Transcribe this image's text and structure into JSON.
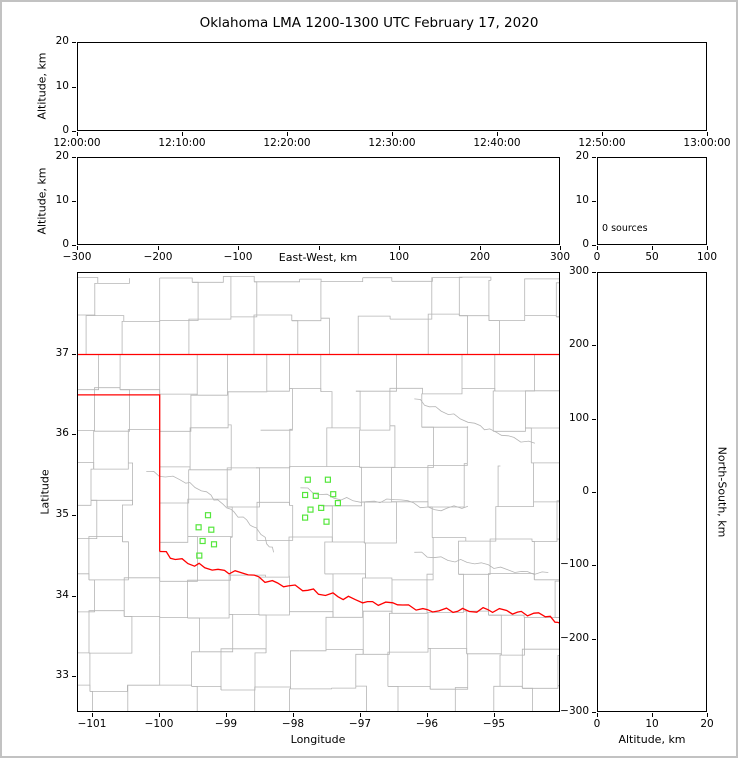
{
  "title": "Oklahoma LMA 1200-1300 UTC February 17, 2020",
  "colors": {
    "state_border": "#ff0000",
    "county_lines": "#b5b5b5",
    "rivers": "#b5b5b5",
    "station_marker": "#55e63c",
    "axes": "#000000",
    "background": "#ffffff",
    "figure_frame": "#c2c2c2"
  },
  "chart_data": {
    "type": "scatter",
    "title": "Oklahoma LMA 1200-1300 UTC February 17, 2020",
    "panels": {
      "time_height": {
        "role": "altitude vs time",
        "ylabel": "Altitude, km",
        "ylim": [
          0,
          20
        ],
        "yticks": [
          0,
          10,
          20
        ],
        "xtick_labels": [
          "12:00:00",
          "12:10:00",
          "12:20:00",
          "12:30:00",
          "12:40:00",
          "12:50:00",
          "13:00:00"
        ],
        "points": []
      },
      "east_west_height": {
        "role": "altitude vs east-west distance",
        "xlabel": "East-West, km",
        "ylabel": "Altitude, km",
        "xlim": [
          -300,
          300
        ],
        "xticks": [
          -300,
          -200,
          -100,
          0,
          100,
          200,
          300
        ],
        "xtick_labels": [
          "−300",
          "−200",
          "−100",
          "",
          "100",
          "200",
          "300"
        ],
        "ylim": [
          0,
          20
        ],
        "yticks": [
          0,
          10,
          20
        ],
        "points": []
      },
      "altitude_histogram": {
        "role": "source count vs altitude",
        "annotation": "0 sources",
        "xlim": [
          0,
          100
        ],
        "xticks": [
          0,
          50,
          100
        ],
        "ylim": [
          0,
          20
        ],
        "yticks": [
          0,
          10,
          20
        ],
        "points": []
      },
      "plan_view_map": {
        "role": "plan view map",
        "xlabel": "Longitude",
        "ylabel": "Latitude",
        "xlim": [
          -101.22,
          -94.01
        ],
        "xticks": [
          -101,
          -100,
          -99,
          -98,
          -97,
          -96,
          -95
        ],
        "ylim": [
          32.56,
          38.01
        ],
        "yticks": [
          33,
          34,
          35,
          36,
          37
        ],
        "points": []
      },
      "north_south_height": {
        "role": "north-south distance vs altitude",
        "xlabel": "Altitude, km",
        "ylabel": "North-South, km",
        "xlim": [
          0,
          20
        ],
        "xticks": [
          0,
          10,
          20
        ],
        "ylim": [
          -300,
          300
        ],
        "yticks": [
          -300,
          -200,
          -100,
          0,
          100,
          200,
          300
        ],
        "points": []
      }
    },
    "stations_lon_lat": [
      [
        -97.79,
        35.45
      ],
      [
        -97.49,
        35.45
      ],
      [
        -97.83,
        35.26
      ],
      [
        -97.67,
        35.25
      ],
      [
        -97.41,
        35.27
      ],
      [
        -97.75,
        35.08
      ],
      [
        -97.59,
        35.1
      ],
      [
        -97.83,
        34.98
      ],
      [
        -97.34,
        35.16
      ],
      [
        -97.51,
        34.93
      ],
      [
        -99.28,
        35.01
      ],
      [
        -99.42,
        34.86
      ],
      [
        -99.23,
        34.83
      ],
      [
        -99.36,
        34.69
      ],
      [
        -99.19,
        34.65
      ],
      [
        -99.41,
        34.51
      ]
    ],
    "map_features": {
      "state_border_north_lat": 37.0,
      "panhandle_south_lat": 36.5,
      "panhandle_east_lon": -100.0,
      "panhandle_corner_lat": 34.56,
      "red_river_border": [
        [
          -100.0,
          34.56
        ],
        [
          -99.58,
          34.41
        ],
        [
          -99.13,
          34.34
        ],
        [
          -98.68,
          34.27
        ],
        [
          -98.24,
          34.17
        ],
        [
          -97.79,
          34.08
        ],
        [
          -97.34,
          34.0
        ],
        [
          -96.9,
          33.94
        ],
        [
          -96.45,
          33.9
        ],
        [
          -96.0,
          33.84
        ],
        [
          -95.55,
          33.82
        ],
        [
          -95.1,
          33.84
        ],
        [
          -94.66,
          33.81
        ],
        [
          -94.28,
          33.77
        ],
        [
          -94.01,
          33.67
        ]
      ],
      "rivers": [
        [
          [
            -97.9,
            35.35
          ],
          [
            -97.4,
            35.22
          ],
          [
            -96.9,
            35.18
          ],
          [
            -96.4,
            35.2
          ],
          [
            -95.9,
            35.08
          ],
          [
            -95.4,
            35.12
          ]
        ],
        [
          [
            -96.2,
            34.55
          ],
          [
            -95.7,
            34.45
          ],
          [
            -95.2,
            34.42
          ],
          [
            -94.7,
            34.3
          ],
          [
            -94.2,
            34.3
          ]
        ],
        [
          [
            -96.2,
            36.45
          ],
          [
            -95.8,
            36.3
          ],
          [
            -95.3,
            36.15
          ],
          [
            -94.9,
            36.0
          ],
          [
            -94.4,
            35.9
          ]
        ],
        [
          [
            -100.2,
            35.55
          ],
          [
            -99.7,
            35.45
          ],
          [
            -99.3,
            35.3
          ],
          [
            -99.0,
            35.1
          ],
          [
            -98.7,
            34.95
          ],
          [
            -98.45,
            34.75
          ],
          [
            -98.3,
            34.55
          ]
        ]
      ]
    }
  }
}
